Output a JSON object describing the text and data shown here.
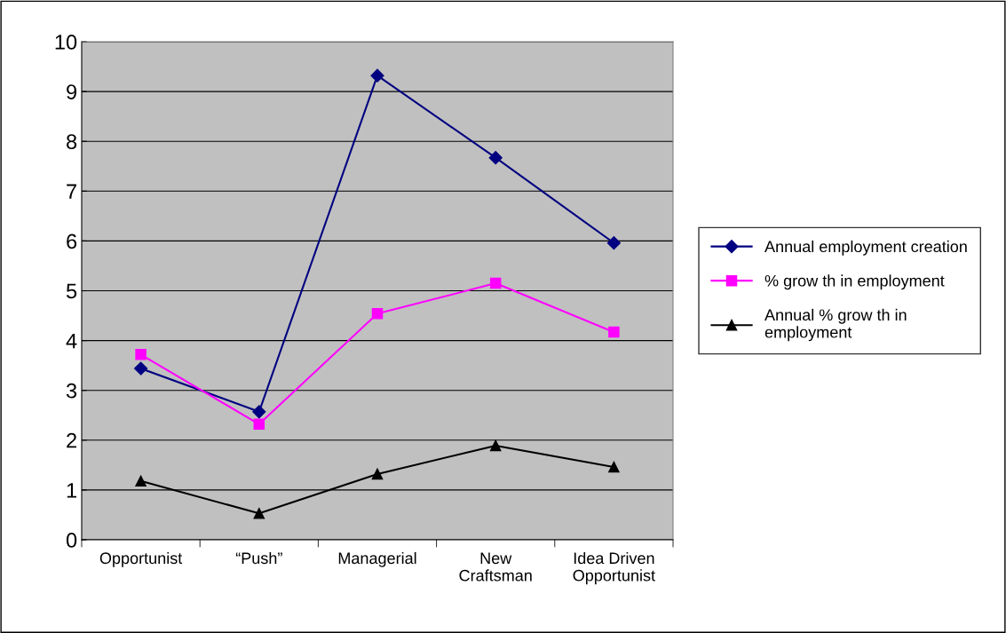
{
  "chart_data": {
    "type": "line",
    "categories": [
      "Opportunist",
      "“Push”",
      "Managerial",
      "New\nCraftsman",
      "Idea Driven\nOpportunist"
    ],
    "series": [
      {
        "name": "Annual employment creation",
        "color": "#000080",
        "marker": "diamond",
        "values": [
          3.44,
          2.57,
          9.32,
          7.67,
          5.96
        ]
      },
      {
        "name": "% grow th in employment",
        "color": "#ff00ff",
        "marker": "square",
        "values": [
          3.72,
          2.32,
          4.54,
          5.15,
          4.17
        ]
      },
      {
        "name": "Annual % grow th in\nemployment",
        "color": "#000000",
        "marker": "triangle",
        "values": [
          1.18,
          0.53,
          1.32,
          1.89,
          1.46
        ]
      }
    ],
    "ylim": [
      0,
      10
    ],
    "yticks": [
      0,
      1,
      2,
      3,
      4,
      5,
      6,
      7,
      8,
      9,
      10
    ],
    "grid": "y",
    "legend": "right"
  }
}
